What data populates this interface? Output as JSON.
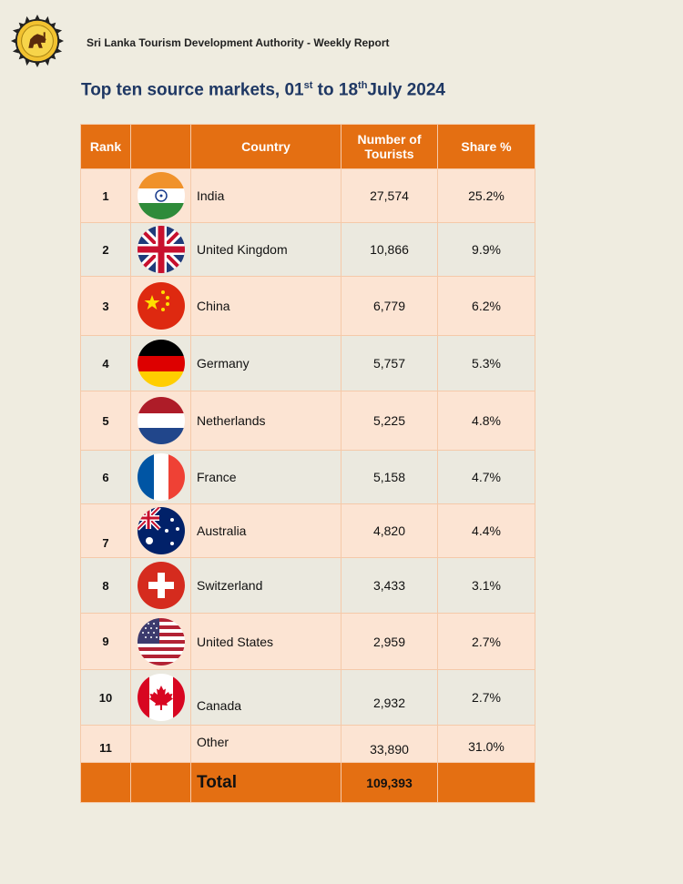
{
  "header": {
    "org_name": "Sri Lanka Tourism Development Authority - Weekly Report",
    "title_prefix": "Top ten source markets, 01",
    "title_sup1": "st",
    "title_mid": " to 18",
    "title_sup2": "th",
    "title_suffix": "July 2024"
  },
  "table": {
    "columns": [
      "Rank",
      "",
      "Country",
      "Number of Tourists",
      "Share %"
    ],
    "rows": [
      {
        "rank": "1",
        "flag": "india-flag-icon",
        "country": "India",
        "tourists": "27,574",
        "share": "25.2%"
      },
      {
        "rank": "2",
        "flag": "uk-flag-icon",
        "country": "United Kingdom",
        "tourists": "10,866",
        "share": "9.9%"
      },
      {
        "rank": "3",
        "flag": "china-flag-icon",
        "country": "China",
        "tourists": "6,779",
        "share": "6.2%"
      },
      {
        "rank": "4",
        "flag": "germany-flag-icon",
        "country": "Germany",
        "tourists": "5,757",
        "share": "5.3%"
      },
      {
        "rank": "5",
        "flag": "netherlands-flag-icon",
        "country": "Netherlands",
        "tourists": "5,225",
        "share": "4.8%"
      },
      {
        "rank": "6",
        "flag": "france-flag-icon",
        "country": "France",
        "tourists": "5,158",
        "share": "4.7%"
      },
      {
        "rank": "7",
        "flag": "australia-flag-icon",
        "country": "Australia",
        "tourists": "4,820",
        "share": "4.4%"
      },
      {
        "rank": "8",
        "flag": "switzerland-flag-icon",
        "country": "Switzerland",
        "tourists": "3,433",
        "share": "3.1%"
      },
      {
        "rank": "9",
        "flag": "usa-flag-icon",
        "country": "United States",
        "tourists": "2,959",
        "share": "2.7%"
      },
      {
        "rank": "10",
        "flag": "canada-flag-icon",
        "country": "Canada",
        "tourists": "2,932",
        "share": "2.7%"
      },
      {
        "rank": "11",
        "flag": "",
        "country": "Other",
        "tourists": "33,890",
        "share": "31.0%"
      }
    ],
    "total": {
      "label": "Total",
      "tourists": "109,393"
    }
  },
  "colors": {
    "header_orange": "#e46f12",
    "row_light_orange": "#fce4d3",
    "row_grey": "#ebe9df",
    "title_blue": "#1f3864",
    "page_bg": "#efece0"
  }
}
